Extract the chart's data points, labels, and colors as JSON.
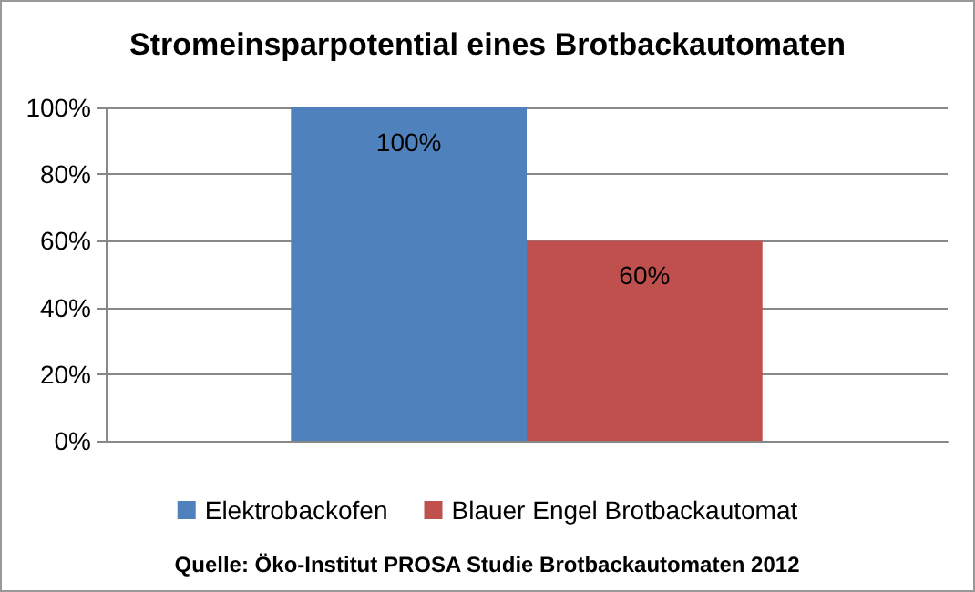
{
  "chart_data": {
    "type": "bar",
    "title": "Stromeinsparpotential eines Brotbackautomaten",
    "categories": [
      null
    ],
    "series": [
      {
        "name": "Elektrobackofen",
        "color": "#4f81bd",
        "values": [
          100
        ],
        "value_labels": [
          "100%"
        ]
      },
      {
        "name": "Blauer Engel Brotbackautomat",
        "color": "#c0504d",
        "values": [
          60
        ],
        "value_labels": [
          "60%"
        ]
      }
    ],
    "ylim": [
      0,
      100
    ],
    "yticks": [
      {
        "value": 0,
        "label": "0%"
      },
      {
        "value": 20,
        "label": "20%"
      },
      {
        "value": 40,
        "label": "40%"
      },
      {
        "value": 60,
        "label": "60%"
      },
      {
        "value": 80,
        "label": "80%"
      },
      {
        "value": 100,
        "label": "100%"
      }
    ],
    "grid": "y",
    "legend": "bottom",
    "annotations": [
      "Quelle: Öko-Institut PROSA Studie Brotbackautomaten 2012"
    ]
  }
}
